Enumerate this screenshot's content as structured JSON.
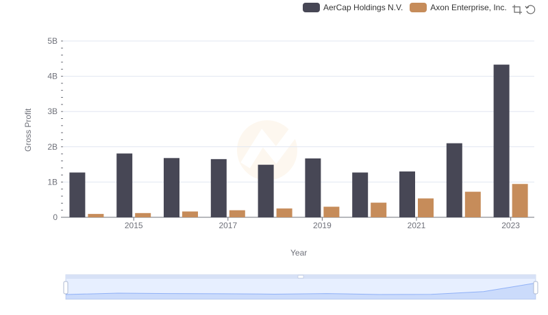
{
  "legend": [
    {
      "name": "AerCap Holdings N.V.",
      "color": "#474755"
    },
    {
      "name": "Axon Enterprise, Inc.",
      "color": "#c68c5a"
    }
  ],
  "toolbox": {
    "zoom_icon": "zoom-icon",
    "restore_icon": "restore-icon"
  },
  "chart_data": {
    "type": "bar",
    "x": [
      2014,
      2015,
      2016,
      2017,
      2018,
      2019,
      2020,
      2021,
      2022,
      2023
    ],
    "xtick_labels": [
      "2015",
      "2017",
      "2019",
      "2021",
      "2023"
    ],
    "xtick_years": [
      2015,
      2017,
      2019,
      2021,
      2023
    ],
    "xlabel": "Year",
    "ylabel": "Gross Profit",
    "ylim": [
      0,
      5000000000
    ],
    "yticks": [
      0,
      1000000000,
      2000000000,
      3000000000,
      4000000000,
      5000000000
    ],
    "ytick_labels": [
      "0",
      "1B",
      "2B",
      "3B",
      "4B",
      "5B"
    ],
    "grid": true,
    "series": [
      {
        "name": "AerCap Holdings N.V.",
        "color": "#474755",
        "values": [
          1270000000,
          1810000000,
          1680000000,
          1650000000,
          1490000000,
          1670000000,
          1270000000,
          1300000000,
          2100000000,
          4330000000
        ]
      },
      {
        "name": "Axon Enterprise, Inc.",
        "color": "#c68c5a",
        "values": [
          95000000,
          120000000,
          165000000,
          200000000,
          250000000,
          300000000,
          415000000,
          535000000,
          725000000,
          945000000
        ]
      }
    ],
    "slider_series": [
      0.25,
      0.32,
      0.3,
      0.29,
      0.27,
      0.3,
      0.25,
      0.26,
      0.4,
      0.85
    ]
  }
}
